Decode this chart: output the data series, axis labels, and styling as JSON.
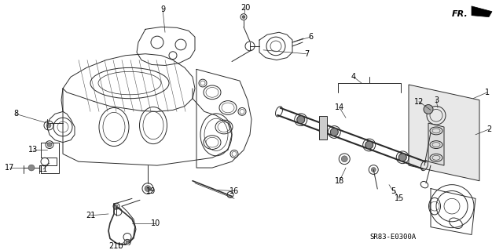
{
  "bg_color": "#ffffff",
  "diagram_code": "SR83-E0300A",
  "fr_label": "FR.",
  "lc": "#2a2a2a",
  "lw": 0.7,
  "label_fs": 7.0
}
